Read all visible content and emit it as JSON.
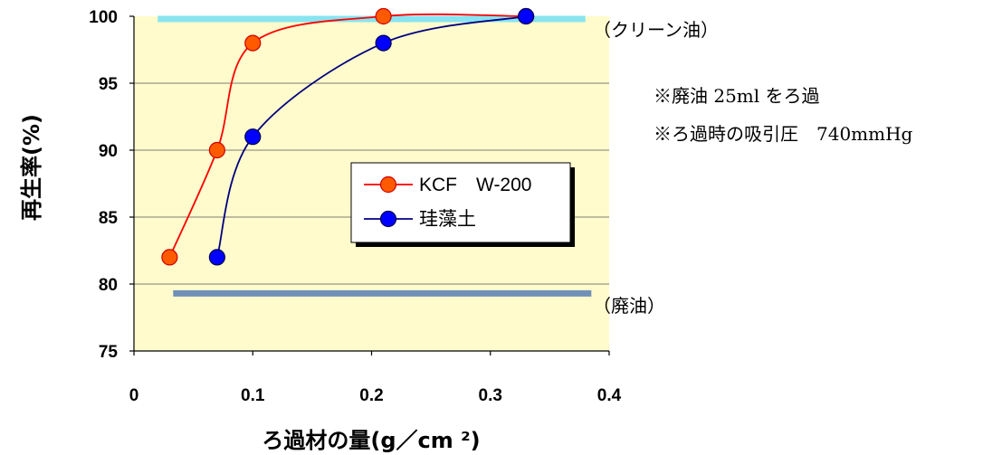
{
  "chart_data": {
    "type": "line",
    "xlabel": "ろ過材の量(g／cm ²)",
    "ylabel": "再生率(%)",
    "xlim": [
      0,
      0.4
    ],
    "ylim": [
      75,
      100
    ],
    "xticks": [
      "0",
      "0.1",
      "0.2",
      "0.3",
      "0.4"
    ],
    "yticks": [
      "75",
      "80",
      "85",
      "90",
      "95",
      "100"
    ],
    "grid": "horizontal",
    "legend_position": "center",
    "series": [
      {
        "name": "KCF　W-200",
        "color": "#ff0000",
        "marker_fill": "#ff5a00",
        "x": [
          0.03,
          0.07,
          0.1,
          0.21,
          0.33
        ],
        "y": [
          82,
          90,
          98,
          100,
          100
        ]
      },
      {
        "name": "珪藻土",
        "color": "#000080",
        "marker_fill": "#0000ff",
        "x": [
          0.07,
          0.1,
          0.21,
          0.33
        ],
        "y": [
          82,
          91,
          98,
          100
        ]
      }
    ],
    "reference_lines": [
      {
        "label": "（クリーン油）",
        "y": 99.8,
        "color": "#88e4f0"
      },
      {
        "label": "（廃油）",
        "y": 79.3,
        "color": "#7090b8"
      }
    ],
    "annotations": [
      "※廃油 25ml をろ過",
      "※ろ過時の吸引圧　740mmHg"
    ],
    "plot_background": "#fffbcc"
  }
}
